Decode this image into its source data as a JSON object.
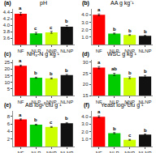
{
  "chart_data": [
    {
      "type": "bar",
      "title": "pH",
      "label": "(a)",
      "categories": [
        "NF",
        "NLP",
        "NNP",
        "NLNP"
      ],
      "values": [
        4.35,
        3.75,
        3.78,
        3.95
      ],
      "errors": [
        0.04,
        0.03,
        0.03,
        0.04
      ],
      "letters": [
        "a",
        "c",
        "c",
        "b"
      ],
      "colors": [
        "#ff0000",
        "#00cc00",
        "#ccff00",
        "#111111"
      ],
      "ylim": [
        3.4,
        4.5
      ],
      "yticks": [
        3.6,
        3.8,
        {
          "value": 4.0,
          "label": "4.0"
        },
        4.2,
        4.4
      ],
      "grid": false
    },
    {
      "type": "bar",
      "title": "AA g kg⁻¹",
      "label": "(b)",
      "categories": [
        "NF",
        "NLP",
        "NNP",
        "NLNP"
      ],
      "values": [
        4.0,
        1.5,
        1.3,
        1.2
      ],
      "errors": [
        0.12,
        0.06,
        0.05,
        0.05
      ],
      "letters": [
        "a",
        "b",
        "b",
        "b"
      ],
      "colors": [
        "#ff0000",
        "#00cc00",
        "#ccff00",
        "#111111"
      ],
      "ylim": [
        0,
        4.8
      ],
      "yticks": [
        {
          "value": 1.0,
          "label": "1.0"
        },
        {
          "value": 2.0,
          "label": "2.0"
        },
        {
          "value": 3.0,
          "label": "3.0"
        },
        {
          "value": 4.0,
          "label": "4.0"
        }
      ],
      "grid": false
    },
    {
      "type": "bar",
      "title": "NH₃-N g kg⁻¹",
      "label": "(c)",
      "categories": [
        "NF",
        "NLP",
        "NNP",
        "NLNP"
      ],
      "values": [
        22.5,
        13.5,
        13.0,
        15.5
      ],
      "errors": [
        0.5,
        0.4,
        0.4,
        0.5
      ],
      "letters": [
        "a",
        "b",
        "b",
        "b"
      ],
      "colors": [
        "#ff0000",
        "#00cc00",
        "#ccff00",
        "#111111"
      ],
      "ylim": [
        0,
        27
      ],
      "yticks": [
        5,
        10,
        15,
        20,
        25
      ],
      "grid": false
    },
    {
      "type": "bar",
      "title": "WSC g kg⁻¹",
      "label": "(d)",
      "categories": [
        "NF",
        "NLP",
        "NNP",
        "NLNP"
      ],
      "values": [
        27.5,
        24.5,
        23.0,
        23.5
      ],
      "errors": [
        0.5,
        0.5,
        0.4,
        0.5
      ],
      "letters": [
        "a",
        "ab",
        "b",
        "b"
      ],
      "colors": [
        "#ff0000",
        "#00cc00",
        "#ccff00",
        "#111111"
      ],
      "ylim": [
        15,
        31
      ],
      "yticks": [
        15,
        20,
        25,
        30
      ],
      "grid": false
    },
    {
      "type": "bar",
      "title": "AB log¹⁰cfu g⁻¹",
      "label": "(e)",
      "categories": [
        "NF",
        "NLP",
        "NNP",
        "NLNP"
      ],
      "values": [
        7.2,
        5.8,
        5.2,
        6.2
      ],
      "errors": [
        0.15,
        0.12,
        0.12,
        0.15
      ],
      "letters": [
        "a",
        "b",
        "c",
        "b"
      ],
      "colors": [
        "#ff0000",
        "#00cc00",
        "#ccff00",
        "#111111"
      ],
      "ylim": [
        0,
        9.5
      ],
      "yticks": [
        2,
        4,
        6,
        8
      ],
      "grid": false
    },
    {
      "type": "bar",
      "title": "Yeast log¹⁰cfu g⁻¹",
      "label": "(f)",
      "categories": [
        "NF",
        "NLP",
        "NNP",
        "NLNP"
      ],
      "values": [
        4.0,
        1.8,
        0.9,
        1.6
      ],
      "errors": [
        0.12,
        0.08,
        0.06,
        0.08
      ],
      "letters": [
        "a",
        "b",
        "c",
        "b"
      ],
      "colors": [
        "#ff0000",
        "#00cc00",
        "#ccff00",
        "#111111"
      ],
      "ylim": [
        0,
        4.8
      ],
      "yticks": [
        {
          "value": 1.0,
          "label": "1.0"
        },
        {
          "value": 2.0,
          "label": "2.0"
        },
        {
          "value": 3.0,
          "label": "3.0"
        },
        {
          "value": 4.0,
          "label": "4.0"
        }
      ],
      "grid": false
    }
  ]
}
